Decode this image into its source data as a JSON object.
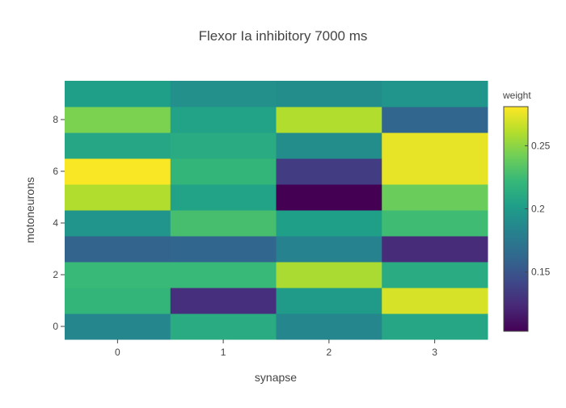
{
  "chart_data": {
    "type": "heatmap",
    "title": "Flexor Ia inhibitory 7000 ms",
    "xlabel": "synapse",
    "ylabel": "motoneurons",
    "x": [
      0,
      1,
      2,
      3
    ],
    "y": [
      0,
      1,
      2,
      3,
      4,
      5,
      6,
      7,
      8,
      9
    ],
    "xticks": [
      "0",
      "1",
      "2",
      "3"
    ],
    "yticks": [
      "0",
      "2",
      "4",
      "6",
      "8"
    ],
    "z": [
      [
        0.185,
        0.212,
        0.185,
        0.208
      ],
      [
        0.22,
        0.127,
        0.2,
        0.27
      ],
      [
        0.223,
        0.223,
        0.258,
        0.212
      ],
      [
        0.16,
        0.162,
        0.182,
        0.125
      ],
      [
        0.195,
        0.228,
        0.203,
        0.225
      ],
      [
        0.26,
        0.205,
        0.103,
        0.24
      ],
      [
        0.28,
        0.22,
        0.135,
        0.275
      ],
      [
        0.208,
        0.212,
        0.19,
        0.275
      ],
      [
        0.245,
        0.205,
        0.26,
        0.162
      ],
      [
        0.203,
        0.192,
        0.19,
        0.195
      ]
    ],
    "colorscale": "Viridis",
    "zmin": 0.103,
    "zmax": 0.281,
    "colorbar": {
      "title": "weight",
      "ticks": [
        0.15,
        0.2,
        0.25
      ],
      "ticklabels": [
        "0.15",
        "0.2",
        "0.25"
      ]
    },
    "grid": false,
    "legend": "none"
  }
}
